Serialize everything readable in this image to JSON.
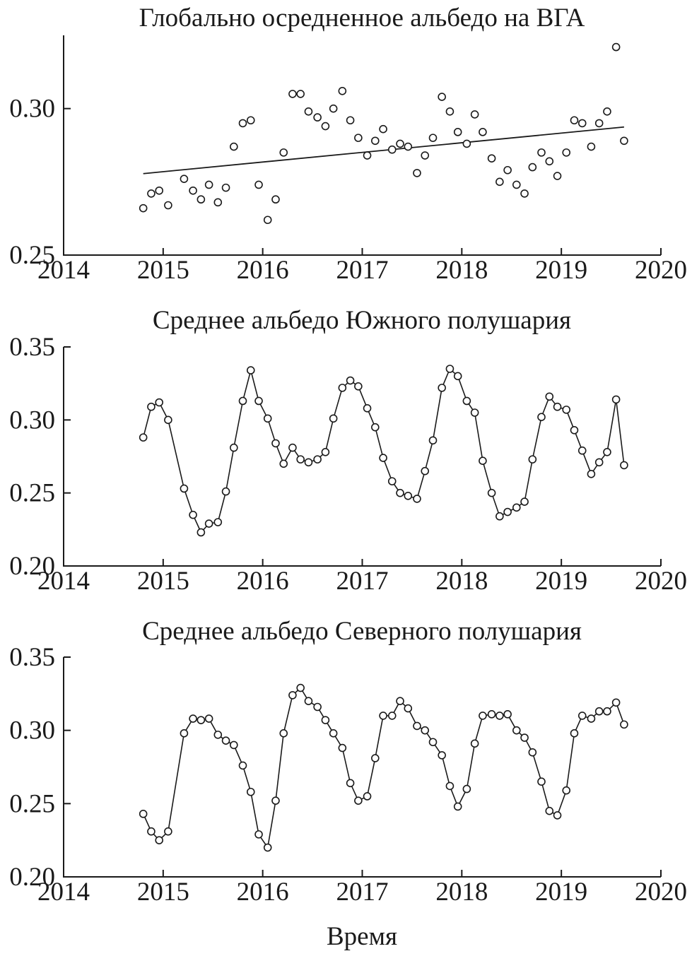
{
  "xlabel": "Время",
  "chart_data": [
    {
      "type": "scatter",
      "title": "Глобально осредненное альбедо на ВГА",
      "xlim": [
        2014,
        2020
      ],
      "ylim": [
        0.25,
        0.325
      ],
      "xticks": [
        2014,
        2015,
        2016,
        2017,
        2018,
        2019,
        2020
      ],
      "xtick_labels": [
        "2014",
        "2015",
        "2016",
        "2017",
        "2018",
        "2019",
        "2020"
      ],
      "yticks": [
        0.25,
        0.3
      ],
      "ytick_labels": [
        "0.25",
        "0.30"
      ],
      "connect_points": false,
      "trendline": {
        "x": [
          2014.8,
          2019.63
        ],
        "y": [
          0.2778,
          0.2937
        ]
      },
      "x": [
        2014.8,
        2014.88,
        2014.96,
        2015.05,
        2015.21,
        2015.3,
        2015.38,
        2015.46,
        2015.55,
        2015.63,
        2015.71,
        2015.8,
        2015.88,
        2015.96,
        2016.05,
        2016.13,
        2016.21,
        2016.3,
        2016.38,
        2016.46,
        2016.55,
        2016.63,
        2016.71,
        2016.8,
        2016.88,
        2016.96,
        2017.05,
        2017.13,
        2017.21,
        2017.3,
        2017.38,
        2017.46,
        2017.55,
        2017.63,
        2017.71,
        2017.8,
        2017.88,
        2017.96,
        2018.05,
        2018.13,
        2018.21,
        2018.3,
        2018.38,
        2018.46,
        2018.55,
        2018.63,
        2018.71,
        2018.8,
        2018.88,
        2018.96,
        2019.05,
        2019.13,
        2019.21,
        2019.3,
        2019.38,
        2019.46,
        2019.55,
        2019.63
      ],
      "y": [
        0.266,
        0.271,
        0.272,
        0.267,
        0.276,
        0.272,
        0.269,
        0.274,
        0.268,
        0.273,
        0.287,
        0.295,
        0.296,
        0.274,
        0.262,
        0.269,
        0.285,
        0.305,
        0.305,
        0.299,
        0.297,
        0.294,
        0.3,
        0.306,
        0.296,
        0.29,
        0.284,
        0.289,
        0.293,
        0.286,
        0.288,
        0.287,
        0.278,
        0.284,
        0.29,
        0.304,
        0.299,
        0.292,
        0.288,
        0.298,
        0.292,
        0.283,
        0.275,
        0.279,
        0.274,
        0.271,
        0.28,
        0.285,
        0.282,
        0.277,
        0.285,
        0.296,
        0.295,
        0.287,
        0.295,
        0.299,
        0.321,
        0.289
      ]
    },
    {
      "type": "line",
      "title": "Среднее альбедо Южного полушария",
      "xlim": [
        2014,
        2020
      ],
      "ylim": [
        0.2,
        0.35
      ],
      "xticks": [
        2014,
        2015,
        2016,
        2017,
        2018,
        2019,
        2020
      ],
      "xtick_labels": [
        "2014",
        "2015",
        "2016",
        "2017",
        "2018",
        "2019",
        "2020"
      ],
      "yticks": [
        0.2,
        0.25,
        0.3,
        0.35
      ],
      "ytick_labels": [
        "0.20",
        "0.25",
        "0.30",
        "0.35"
      ],
      "connect_points": true,
      "x": [
        2014.8,
        2014.88,
        2014.96,
        2015.05,
        2015.21,
        2015.3,
        2015.38,
        2015.46,
        2015.55,
        2015.63,
        2015.71,
        2015.8,
        2015.88,
        2015.96,
        2016.05,
        2016.13,
        2016.21,
        2016.3,
        2016.38,
        2016.46,
        2016.55,
        2016.63,
        2016.71,
        2016.8,
        2016.88,
        2016.96,
        2017.05,
        2017.13,
        2017.21,
        2017.3,
        2017.38,
        2017.46,
        2017.55,
        2017.63,
        2017.71,
        2017.8,
        2017.88,
        2017.96,
        2018.05,
        2018.13,
        2018.21,
        2018.3,
        2018.38,
        2018.46,
        2018.55,
        2018.63,
        2018.71,
        2018.8,
        2018.88,
        2018.96,
        2019.05,
        2019.13,
        2019.21,
        2019.3,
        2019.38,
        2019.46,
        2019.55,
        2019.63
      ],
      "y": [
        0.288,
        0.309,
        0.312,
        0.3,
        0.253,
        0.235,
        0.223,
        0.229,
        0.23,
        0.251,
        0.281,
        0.313,
        0.334,
        0.313,
        0.301,
        0.284,
        0.27,
        0.281,
        0.273,
        0.271,
        0.273,
        0.278,
        0.301,
        0.322,
        0.327,
        0.323,
        0.308,
        0.295,
        0.274,
        0.258,
        0.25,
        0.248,
        0.246,
        0.265,
        0.286,
        0.322,
        0.335,
        0.33,
        0.313,
        0.305,
        0.272,
        0.25,
        0.234,
        0.237,
        0.24,
        0.244,
        0.273,
        0.302,
        0.316,
        0.309,
        0.307,
        0.293,
        0.279,
        0.263,
        0.271,
        0.278,
        0.314,
        0.269
      ]
    },
    {
      "type": "line",
      "title": "Среднее альбедо Северного полушария",
      "xlim": [
        2014,
        2020
      ],
      "ylim": [
        0.2,
        0.35
      ],
      "xticks": [
        2014,
        2015,
        2016,
        2017,
        2018,
        2019,
        2020
      ],
      "xtick_labels": [
        "2014",
        "2015",
        "2016",
        "2017",
        "2018",
        "2019",
        "2020"
      ],
      "yticks": [
        0.2,
        0.25,
        0.3,
        0.35
      ],
      "ytick_labels": [
        "0.20",
        "0.25",
        "0.30",
        "0.35"
      ],
      "connect_points": true,
      "x": [
        2014.8,
        2014.88,
        2014.96,
        2015.05,
        2015.21,
        2015.3,
        2015.38,
        2015.46,
        2015.55,
        2015.63,
        2015.71,
        2015.8,
        2015.88,
        2015.96,
        2016.05,
        2016.13,
        2016.21,
        2016.3,
        2016.38,
        2016.46,
        2016.55,
        2016.63,
        2016.71,
        2016.8,
        2016.88,
        2016.96,
        2017.05,
        2017.13,
        2017.21,
        2017.3,
        2017.38,
        2017.46,
        2017.55,
        2017.63,
        2017.71,
        2017.8,
        2017.88,
        2017.96,
        2018.05,
        2018.13,
        2018.21,
        2018.3,
        2018.38,
        2018.46,
        2018.55,
        2018.63,
        2018.71,
        2018.8,
        2018.88,
        2018.96,
        2019.05,
        2019.13,
        2019.21,
        2019.3,
        2019.38,
        2019.46,
        2019.55,
        2019.63
      ],
      "y": [
        0.243,
        0.231,
        0.225,
        0.231,
        0.298,
        0.308,
        0.307,
        0.308,
        0.297,
        0.293,
        0.29,
        0.276,
        0.258,
        0.229,
        0.22,
        0.252,
        0.298,
        0.324,
        0.329,
        0.32,
        0.316,
        0.307,
        0.298,
        0.288,
        0.264,
        0.252,
        0.255,
        0.281,
        0.31,
        0.31,
        0.32,
        0.315,
        0.303,
        0.3,
        0.292,
        0.283,
        0.262,
        0.248,
        0.26,
        0.291,
        0.31,
        0.311,
        0.31,
        0.311,
        0.3,
        0.295,
        0.285,
        0.265,
        0.245,
        0.242,
        0.259,
        0.298,
        0.31,
        0.308,
        0.313,
        0.313,
        0.319,
        0.304
      ]
    }
  ]
}
